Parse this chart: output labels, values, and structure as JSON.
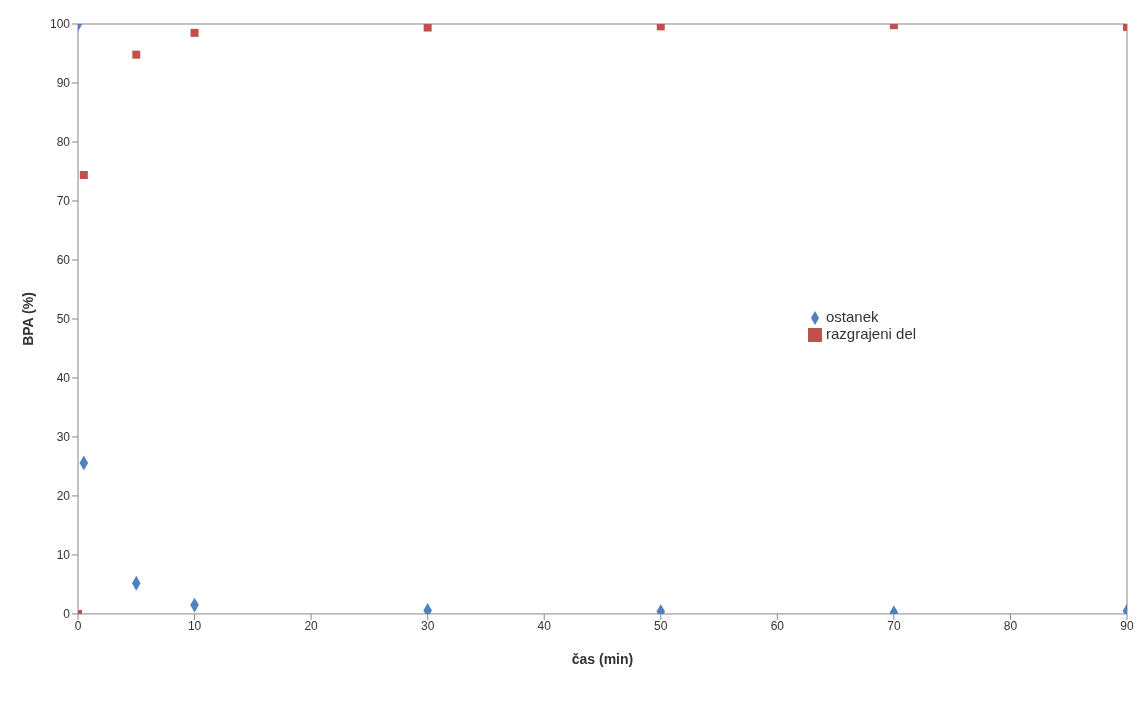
{
  "chart_data": {
    "type": "scatter",
    "xlabel": "čas (min)",
    "ylabel": "BPA (%)",
    "x": [
      0,
      0.5,
      5,
      10,
      30,
      50,
      70,
      90
    ],
    "series": [
      {
        "name": "ostanek",
        "color": "#4f81bd",
        "marker": "diamond",
        "values": [
          100,
          25.6,
          5.2,
          1.5,
          0.6,
          0.4,
          0.2,
          0.5
        ]
      },
      {
        "name": "razgrajeni del",
        "color": "#c0504d",
        "marker": "square",
        "values": [
          0,
          74.4,
          94.8,
          98.5,
          99.4,
          99.6,
          99.8,
          99.5
        ]
      }
    ],
    "xlim": [
      0,
      90
    ],
    "xticks": [
      0,
      10,
      20,
      30,
      40,
      50,
      60,
      70,
      80,
      90
    ],
    "ylim": [
      0,
      100
    ],
    "yticks": [
      0,
      10,
      20,
      30,
      40,
      50,
      60,
      70,
      80,
      90,
      100
    ],
    "grid": false,
    "legend": "right"
  }
}
